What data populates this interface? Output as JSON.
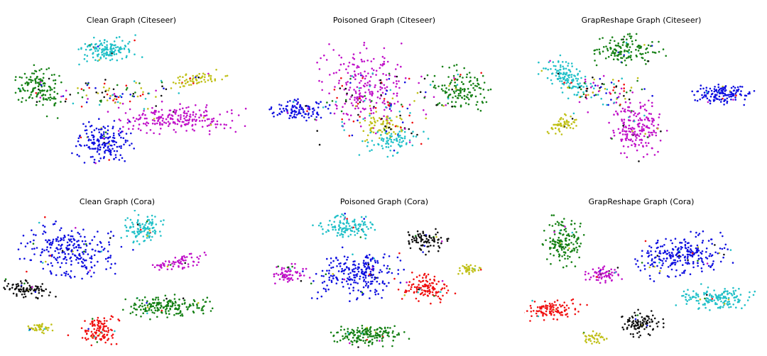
{
  "chart_data": [
    {
      "type": "scatter",
      "title": "Clean Graph (Citeseer)",
      "clusters": [
        {
          "color": "c",
          "cx": 0.4,
          "cy": 0.15,
          "rx": 0.11,
          "ry": 0.07,
          "n": 150,
          "rot": -5
        },
        {
          "color": "g",
          "cx": 0.1,
          "cy": 0.42,
          "rx": 0.09,
          "ry": 0.12,
          "n": 150,
          "rot": 25
        },
        {
          "color": "y",
          "cx": 0.77,
          "cy": 0.36,
          "rx": 0.1,
          "ry": 0.04,
          "n": 70,
          "rot": -10
        },
        {
          "color": "m",
          "cx": 0.7,
          "cy": 0.64,
          "rx": 0.22,
          "ry": 0.08,
          "n": 220,
          "rot": 0
        },
        {
          "color": "b",
          "cx": 0.38,
          "cy": 0.8,
          "rx": 0.1,
          "ry": 0.12,
          "n": 180,
          "rot": 0
        },
        {
          "color": "mix",
          "cx": 0.44,
          "cy": 0.46,
          "rx": 0.2,
          "ry": 0.08,
          "n": 90,
          "rot": 0
        }
      ]
    },
    {
      "type": "scatter",
      "title": "Poisoned Graph (Citeseer)",
      "clusters": [
        {
          "color": "m",
          "cx": 0.42,
          "cy": 0.4,
          "rx": 0.15,
          "ry": 0.22,
          "n": 220,
          "rot": 0
        },
        {
          "color": "g",
          "cx": 0.82,
          "cy": 0.42,
          "rx": 0.11,
          "ry": 0.13,
          "n": 140,
          "rot": 0
        },
        {
          "color": "b",
          "cx": 0.14,
          "cy": 0.58,
          "rx": 0.12,
          "ry": 0.06,
          "n": 120,
          "rot": 0
        },
        {
          "color": "y",
          "cx": 0.5,
          "cy": 0.7,
          "rx": 0.07,
          "ry": 0.08,
          "n": 70,
          "rot": 0
        },
        {
          "color": "c",
          "cx": 0.55,
          "cy": 0.8,
          "rx": 0.12,
          "ry": 0.08,
          "n": 80,
          "rot": 0
        },
        {
          "color": "mix",
          "cx": 0.5,
          "cy": 0.55,
          "rx": 0.25,
          "ry": 0.2,
          "n": 120,
          "rot": 0
        }
      ]
    },
    {
      "type": "scatter",
      "title": "GrapReshape Graph (Citeseer)",
      "clusters": [
        {
          "color": "g",
          "cx": 0.44,
          "cy": 0.15,
          "rx": 0.12,
          "ry": 0.08,
          "n": 140,
          "rot": 0
        },
        {
          "color": "c",
          "cx": 0.18,
          "cy": 0.34,
          "rx": 0.1,
          "ry": 0.08,
          "n": 130,
          "rot": 30
        },
        {
          "color": "b",
          "cx": 0.85,
          "cy": 0.46,
          "rx": 0.11,
          "ry": 0.06,
          "n": 150,
          "rot": 0
        },
        {
          "color": "m",
          "cx": 0.48,
          "cy": 0.7,
          "rx": 0.09,
          "ry": 0.16,
          "n": 200,
          "rot": -15
        },
        {
          "color": "y",
          "cx": 0.16,
          "cy": 0.68,
          "rx": 0.06,
          "ry": 0.05,
          "n": 60,
          "rot": -20
        },
        {
          "color": "mix",
          "cx": 0.36,
          "cy": 0.45,
          "rx": 0.15,
          "ry": 0.12,
          "n": 90,
          "rot": 0
        }
      ]
    },
    {
      "type": "scatter",
      "title": "Clean Graph (Cora)",
      "clusters": [
        {
          "color": "b",
          "cx": 0.3,
          "cy": 0.28,
          "rx": 0.16,
          "ry": 0.15,
          "n": 260,
          "rot": 10
        },
        {
          "color": "c",
          "cx": 0.61,
          "cy": 0.13,
          "rx": 0.07,
          "ry": 0.09,
          "n": 110,
          "rot": 0
        },
        {
          "color": "m",
          "cx": 0.76,
          "cy": 0.37,
          "rx": 0.09,
          "ry": 0.05,
          "n": 70,
          "rot": -15
        },
        {
          "color": "k",
          "cx": 0.12,
          "cy": 0.56,
          "rx": 0.09,
          "ry": 0.05,
          "n": 90,
          "rot": 10
        },
        {
          "color": "g",
          "cx": 0.71,
          "cy": 0.68,
          "rx": 0.15,
          "ry": 0.07,
          "n": 180,
          "rot": 0
        },
        {
          "color": "r",
          "cx": 0.42,
          "cy": 0.85,
          "rx": 0.07,
          "ry": 0.08,
          "n": 120,
          "rot": 0
        },
        {
          "color": "y",
          "cx": 0.17,
          "cy": 0.83,
          "rx": 0.05,
          "ry": 0.03,
          "n": 40,
          "rot": 0
        }
      ]
    },
    {
      "type": "scatter",
      "title": "Poisoned Graph (Cora)",
      "clusters": [
        {
          "color": "c",
          "cx": 0.34,
          "cy": 0.12,
          "rx": 0.11,
          "ry": 0.07,
          "n": 130,
          "rot": 0
        },
        {
          "color": "b",
          "cx": 0.4,
          "cy": 0.46,
          "rx": 0.16,
          "ry": 0.14,
          "n": 250,
          "rot": 0
        },
        {
          "color": "k",
          "cx": 0.68,
          "cy": 0.22,
          "rx": 0.07,
          "ry": 0.07,
          "n": 90,
          "rot": 0
        },
        {
          "color": "m",
          "cx": 0.1,
          "cy": 0.45,
          "rx": 0.06,
          "ry": 0.05,
          "n": 70,
          "rot": 0
        },
        {
          "color": "r",
          "cx": 0.68,
          "cy": 0.55,
          "rx": 0.09,
          "ry": 0.08,
          "n": 120,
          "rot": 0
        },
        {
          "color": "y",
          "cx": 0.86,
          "cy": 0.42,
          "rx": 0.04,
          "ry": 0.03,
          "n": 40,
          "rot": 0
        },
        {
          "color": "g",
          "cx": 0.43,
          "cy": 0.88,
          "rx": 0.13,
          "ry": 0.06,
          "n": 170,
          "rot": 0
        }
      ]
    },
    {
      "type": "scatter",
      "title": "GrapReshape Graph (Cora)",
      "clusters": [
        {
          "color": "g",
          "cx": 0.17,
          "cy": 0.22,
          "rx": 0.07,
          "ry": 0.14,
          "n": 150,
          "rot": 0
        },
        {
          "color": "b",
          "cx": 0.67,
          "cy": 0.32,
          "rx": 0.17,
          "ry": 0.11,
          "n": 260,
          "rot": -10
        },
        {
          "color": "m",
          "cx": 0.34,
          "cy": 0.45,
          "rx": 0.06,
          "ry": 0.05,
          "n": 70,
          "rot": 0
        },
        {
          "color": "r",
          "cx": 0.12,
          "cy": 0.7,
          "rx": 0.09,
          "ry": 0.06,
          "n": 110,
          "rot": 0
        },
        {
          "color": "c",
          "cx": 0.82,
          "cy": 0.62,
          "rx": 0.13,
          "ry": 0.07,
          "n": 150,
          "rot": 0
        },
        {
          "color": "k",
          "cx": 0.5,
          "cy": 0.8,
          "rx": 0.07,
          "ry": 0.08,
          "n": 100,
          "rot": 0
        },
        {
          "color": "y",
          "cx": 0.3,
          "cy": 0.9,
          "rx": 0.04,
          "ry": 0.04,
          "n": 40,
          "rot": 0
        }
      ]
    }
  ],
  "palette": {
    "b": "#1010e0",
    "c": "#20c0c8",
    "g": "#158015",
    "m": "#c010c8",
    "y": "#c0c018",
    "k": "#101010",
    "r": "#f01010"
  }
}
